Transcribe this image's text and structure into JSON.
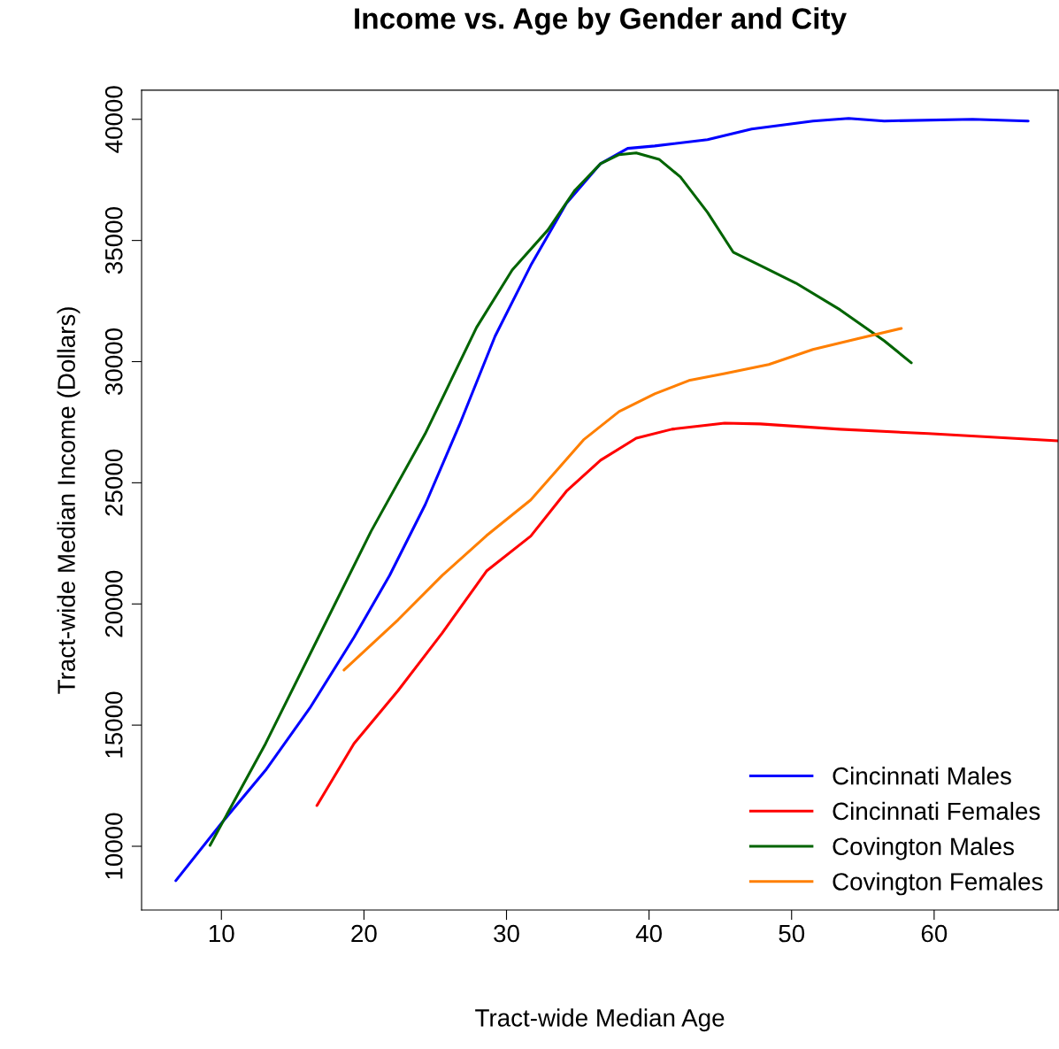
{
  "chart_data": {
    "type": "line",
    "title": "Income vs. Age by Gender and City",
    "xlabel": "Tract-wide Median Age",
    "ylabel": "Tract-wide Median Income (Dollars)",
    "xlim": [
      4.4,
      68.7
    ],
    "ylim": [
      7370,
      41200
    ],
    "xticks": [
      10,
      20,
      30,
      40,
      50,
      60
    ],
    "yticks": [
      10000,
      15000,
      20000,
      25000,
      30000,
      35000,
      40000
    ],
    "grid": false,
    "legend": "bottom right",
    "line_style": "solid",
    "marker": "none",
    "series": [
      {
        "name": "Cincinnati Males",
        "color": "#0000ff",
        "x": [
          6.8,
          10,
          13.1,
          16.2,
          19.3,
          21.8,
          24.3,
          26.7,
          29.2,
          31.7,
          34.2,
          36.6,
          38.5,
          40.4,
          44.1,
          47.2,
          51.5,
          54,
          56.5,
          62.7,
          66.6
        ],
        "values": [
          8580,
          10950,
          13140,
          15700,
          18620,
          21180,
          24100,
          27390,
          31050,
          33970,
          36530,
          38170,
          38800,
          38900,
          39160,
          39600,
          39930,
          40040,
          39930,
          40000,
          39930
        ]
      },
      {
        "name": "Cincinnati Females",
        "color": "#ff0000",
        "x": [
          16.7,
          19.3,
          22.4,
          25.5,
          28.6,
          31.7,
          34.2,
          36.6,
          39.1,
          41.6,
          45.3,
          47.8,
          53.4,
          59.6,
          68.7
        ],
        "values": [
          11680,
          14240,
          16430,
          18810,
          21360,
          22800,
          24650,
          25930,
          26840,
          27210,
          27460,
          27430,
          27210,
          27030,
          26730
        ]
      },
      {
        "name": "Covington Males",
        "color": "#006400",
        "x": [
          9.2,
          13.1,
          16.8,
          20.5,
          24.3,
          27.9,
          30.4,
          32.9,
          34.8,
          36.6,
          37.9,
          39.1,
          40.7,
          42.2,
          44.1,
          45.9,
          47.8,
          50.3,
          53.4,
          56.5,
          58.4
        ],
        "values": [
          10040,
          14240,
          18620,
          23000,
          27030,
          31410,
          33780,
          35430,
          37070,
          38170,
          38540,
          38610,
          38350,
          37620,
          36160,
          34520,
          33970,
          33240,
          32140,
          30860,
          29950
        ]
      },
      {
        "name": "Covington Females",
        "color": "#ff7f00",
        "x": [
          18.6,
          22.4,
          25.5,
          28.6,
          31.7,
          33.6,
          35.4,
          37.9,
          40.4,
          42.8,
          45.3,
          48.4,
          51.5,
          54.6,
          57.7
        ],
        "values": [
          17270,
          19350,
          21180,
          22820,
          24290,
          25560,
          26770,
          27940,
          28670,
          29220,
          29510,
          29880,
          30500,
          30940,
          31370
        ]
      }
    ]
  }
}
